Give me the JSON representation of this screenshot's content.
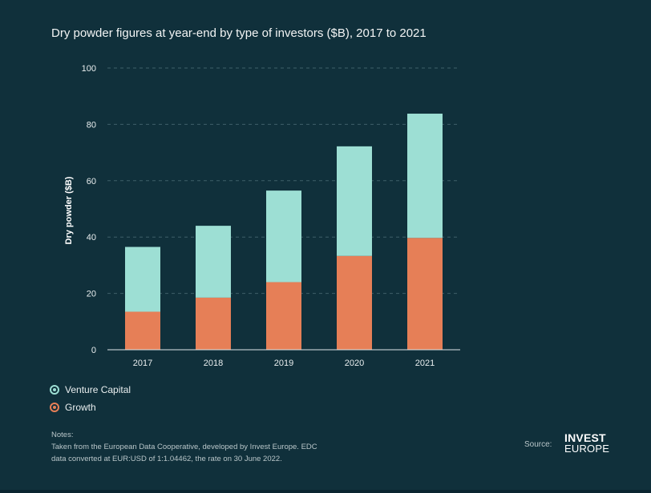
{
  "title": "Dry powder figures at year-end by type of investors ($B), 2017 to 2021",
  "colors": {
    "background": "#10303b",
    "venture_capital": "#9ddfd4",
    "growth": "#e67f57",
    "grid": "#3e5f69",
    "axis_text": "#e9eeef"
  },
  "chart_data": {
    "type": "bar",
    "stacked": true,
    "title": "Dry powder figures at year-end by type of investors ($B), 2017 to 2021",
    "xlabel": "",
    "ylabel": "Dry powder ($B)",
    "ylim": [
      0,
      100
    ],
    "yticks": [
      0,
      20,
      40,
      60,
      80,
      100
    ],
    "grid": true,
    "categories": [
      "2017",
      "2018",
      "2019",
      "2020",
      "2021"
    ],
    "series": [
      {
        "name": "Growth",
        "values": [
          13.5,
          18.5,
          24,
          33.3,
          39.7
        ]
      },
      {
        "name": "Venture Capital",
        "values": [
          23,
          25.5,
          32.5,
          38.9,
          44.1
        ]
      }
    ],
    "totals": [
      36.5,
      44,
      56.5,
      72.2,
      83.8
    ]
  },
  "legend": [
    {
      "label": "Venture Capital",
      "color_key": "venture_capital"
    },
    {
      "label": "Growth",
      "color_key": "growth"
    }
  ],
  "notes": {
    "heading": "Notes:",
    "line1": "Taken from the European Data Cooperative, developed by Invest Europe. EDC",
    "line2": "data converted at EUR:USD of 1:1.04462, the rate on 30 June 2022."
  },
  "source": {
    "label": "Source:",
    "logo_top": "INVEST",
    "logo_bottom": "EUROPE"
  }
}
